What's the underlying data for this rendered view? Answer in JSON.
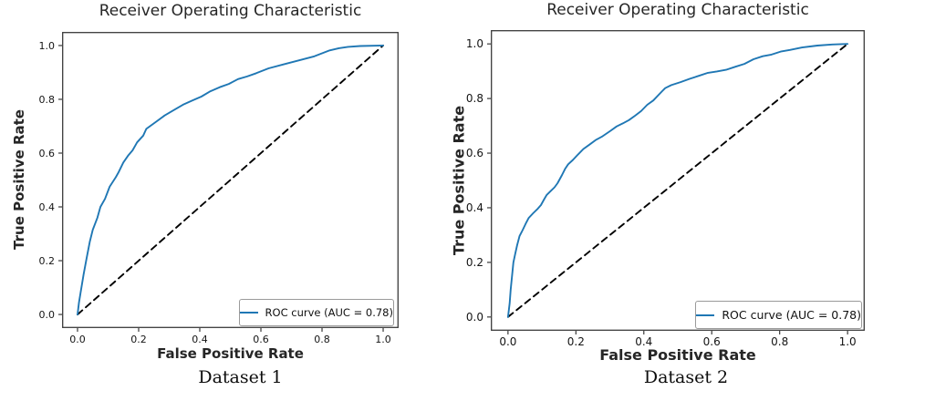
{
  "figure": {
    "captions": [
      "Dataset 1",
      "Dataset 2"
    ],
    "accent_color": "#1f77b4",
    "diagonal_color": "#000000"
  },
  "chart_data": [
    {
      "type": "line",
      "title": "Receiver Operating Characteristic",
      "subtitle": "Dataset 1",
      "xlabel": "False Positive Rate",
      "ylabel": "True Positive Rate",
      "xlim": [
        0,
        1
      ],
      "ylim": [
        0,
        1
      ],
      "x_ticks": [
        "0.0",
        "0.2",
        "0.4",
        "0.6",
        "0.8",
        "1.0"
      ],
      "y_ticks": [
        "0.0",
        "0.2",
        "0.4",
        "0.6",
        "0.8",
        "1.0"
      ],
      "grid": false,
      "auc": 0.78,
      "legend": {
        "position": "lower right",
        "entries": [
          "ROC curve (AUC = 0.78)"
        ]
      },
      "series": [
        {
          "name": "ROC curve (AUC = 0.78)",
          "color": "#1f77b4",
          "style": "solid",
          "points": [
            [
              0,
              0
            ],
            [
              0.005,
              0.045
            ],
            [
              0.01,
              0.08
            ],
            [
              0.02,
              0.15
            ],
            [
              0.03,
              0.21
            ],
            [
              0.04,
              0.27
            ],
            [
              0.05,
              0.315
            ],
            [
              0.065,
              0.36
            ],
            [
              0.075,
              0.4
            ],
            [
              0.09,
              0.43
            ],
            [
              0.105,
              0.475
            ],
            [
              0.125,
              0.51
            ],
            [
              0.135,
              0.53
            ],
            [
              0.15,
              0.565
            ],
            [
              0.165,
              0.59
            ],
            [
              0.18,
              0.61
            ],
            [
              0.195,
              0.64
            ],
            [
              0.215,
              0.665
            ],
            [
              0.225,
              0.69
            ],
            [
              0.255,
              0.715
            ],
            [
              0.285,
              0.74
            ],
            [
              0.315,
              0.76
            ],
            [
              0.345,
              0.78
            ],
            [
              0.375,
              0.795
            ],
            [
              0.405,
              0.81
            ],
            [
              0.435,
              0.83
            ],
            [
              0.465,
              0.845
            ],
            [
              0.495,
              0.857
            ],
            [
              0.525,
              0.875
            ],
            [
              0.555,
              0.885
            ],
            [
              0.585,
              0.897
            ],
            [
              0.625,
              0.915
            ],
            [
              0.675,
              0.93
            ],
            [
              0.725,
              0.945
            ],
            [
              0.775,
              0.96
            ],
            [
              0.825,
              0.982
            ],
            [
              0.855,
              0.99
            ],
            [
              0.885,
              0.995
            ],
            [
              0.925,
              0.998
            ],
            [
              1,
              1
            ]
          ]
        },
        {
          "name": "chance (diagonal)",
          "color": "#000000",
          "style": "dashed",
          "points": [
            [
              0,
              0
            ],
            [
              1,
              1
            ]
          ]
        }
      ]
    },
    {
      "type": "line",
      "title": "Receiver Operating Characteristic",
      "subtitle": "Dataset 2",
      "xlabel": "False Positive Rate",
      "ylabel": "True Positive Rate",
      "xlim": [
        0,
        1
      ],
      "ylim": [
        0,
        1
      ],
      "x_ticks": [
        "0.0",
        "0.2",
        "0.4",
        "0.6",
        "0.8",
        "1.0"
      ],
      "y_ticks": [
        "0.0",
        "0.2",
        "0.4",
        "0.6",
        "0.8",
        "1.0"
      ],
      "grid": false,
      "auc": 0.78,
      "legend": {
        "position": "lower right",
        "entries": [
          "ROC curve (AUC = 0.78)"
        ]
      },
      "series": [
        {
          "name": "ROC curve (AUC = 0.78)",
          "color": "#1f77b4",
          "style": "solid",
          "points": [
            [
              0,
              0
            ],
            [
              0.005,
              0.05
            ],
            [
              0.008,
              0.1
            ],
            [
              0.012,
              0.15
            ],
            [
              0.016,
              0.2
            ],
            [
              0.021,
              0.23
            ],
            [
              0.027,
              0.263
            ],
            [
              0.034,
              0.296
            ],
            [
              0.043,
              0.318
            ],
            [
              0.052,
              0.341
            ],
            [
              0.061,
              0.363
            ],
            [
              0.074,
              0.38
            ],
            [
              0.088,
              0.397
            ],
            [
              0.097,
              0.41
            ],
            [
              0.106,
              0.43
            ],
            [
              0.114,
              0.447
            ],
            [
              0.123,
              0.458
            ],
            [
              0.137,
              0.475
            ],
            [
              0.146,
              0.49
            ],
            [
              0.159,
              0.52
            ],
            [
              0.168,
              0.542
            ],
            [
              0.177,
              0.559
            ],
            [
              0.191,
              0.575
            ],
            [
              0.204,
              0.592
            ],
            [
              0.222,
              0.615
            ],
            [
              0.24,
              0.631
            ],
            [
              0.258,
              0.648
            ],
            [
              0.276,
              0.66
            ],
            [
              0.302,
              0.682
            ],
            [
              0.32,
              0.698
            ],
            [
              0.338,
              0.709
            ],
            [
              0.356,
              0.721
            ],
            [
              0.374,
              0.737
            ],
            [
              0.392,
              0.754
            ],
            [
              0.41,
              0.777
            ],
            [
              0.428,
              0.793
            ],
            [
              0.441,
              0.81
            ],
            [
              0.454,
              0.827
            ],
            [
              0.463,
              0.838
            ],
            [
              0.481,
              0.849
            ],
            [
              0.508,
              0.86
            ],
            [
              0.535,
              0.872
            ],
            [
              0.562,
              0.883
            ],
            [
              0.589,
              0.894
            ],
            [
              0.615,
              0.899
            ],
            [
              0.642,
              0.905
            ],
            [
              0.669,
              0.916
            ],
            [
              0.696,
              0.927
            ],
            [
              0.723,
              0.944
            ],
            [
              0.75,
              0.955
            ],
            [
              0.776,
              0.961
            ],
            [
              0.803,
              0.972
            ],
            [
              0.83,
              0.978
            ],
            [
              0.866,
              0.987
            ],
            [
              0.911,
              0.994
            ],
            [
              0.955,
              0.998
            ],
            [
              1,
              1
            ]
          ]
        },
        {
          "name": "chance (diagonal)",
          "color": "#000000",
          "style": "dashed",
          "points": [
            [
              0,
              0
            ],
            [
              1,
              1
            ]
          ]
        }
      ]
    }
  ]
}
